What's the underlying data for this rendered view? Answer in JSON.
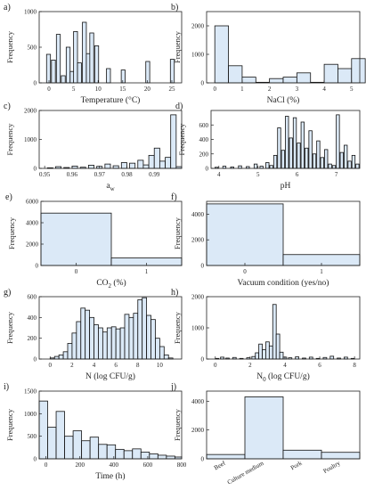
{
  "colors": {
    "bar_fill": "#dbe9f7",
    "bar_stroke": "#111111",
    "axis": "#222222"
  },
  "chart_data": [
    {
      "type": "bar",
      "panel_label": "a)",
      "xlabel": "Temperature (°C)",
      "ylabel": "Frequency",
      "xlim": [
        -2,
        27
      ],
      "ylim": [
        0,
        1000
      ],
      "xticks": [
        0,
        5,
        10,
        15,
        20,
        25
      ],
      "yticks": [
        0,
        500,
        1000
      ],
      "bars": [
        {
          "x": -0.5,
          "w": 0.8,
          "y": 400
        },
        {
          "x": 0.5,
          "w": 0.8,
          "y": 320
        },
        {
          "x": 1.5,
          "w": 0.8,
          "y": 680
        },
        {
          "x": 2.5,
          "w": 0.8,
          "y": 100
        },
        {
          "x": 3.5,
          "w": 0.8,
          "y": 500
        },
        {
          "x": 4.3,
          "w": 0.8,
          "y": 160
        },
        {
          "x": 5.0,
          "w": 0.8,
          "y": 720
        },
        {
          "x": 5.8,
          "w": 0.8,
          "y": 280
        },
        {
          "x": 6.8,
          "w": 0.8,
          "y": 850
        },
        {
          "x": 7.6,
          "w": 0.8,
          "y": 410
        },
        {
          "x": 8.3,
          "w": 0.8,
          "y": 700
        },
        {
          "x": 9.3,
          "w": 0.8,
          "y": 520
        },
        {
          "x": 11.7,
          "w": 0.8,
          "y": 200
        },
        {
          "x": 14.7,
          "w": 0.8,
          "y": 180
        },
        {
          "x": 19.7,
          "w": 0.8,
          "y": 300
        },
        {
          "x": 24.7,
          "w": 0.8,
          "y": 330
        }
      ]
    },
    {
      "type": "bar",
      "panel_label": "b)",
      "xlabel": "NaCl (%)",
      "ylabel": "Frequency",
      "xlim": [
        -0.3,
        5.3
      ],
      "ylim": [
        0,
        2500
      ],
      "xticks": [
        0,
        1,
        2,
        3,
        4,
        5
      ],
      "yticks": [
        0,
        1000,
        2000
      ],
      "bars": [
        {
          "x": 0.0,
          "w": 0.5,
          "y": 2000
        },
        {
          "x": 0.5,
          "w": 0.5,
          "y": 600
        },
        {
          "x": 1.0,
          "w": 0.5,
          "y": 200
        },
        {
          "x": 1.5,
          "w": 0.5,
          "y": 20
        },
        {
          "x": 2.0,
          "w": 0.5,
          "y": 150
        },
        {
          "x": 2.5,
          "w": 0.5,
          "y": 200
        },
        {
          "x": 3.0,
          "w": 0.5,
          "y": 350
        },
        {
          "x": 3.5,
          "w": 0.5,
          "y": 20
        },
        {
          "x": 4.0,
          "w": 0.5,
          "y": 650
        },
        {
          "x": 4.5,
          "w": 0.5,
          "y": 500
        },
        {
          "x": 5.0,
          "w": 0.5,
          "y": 850
        }
      ]
    },
    {
      "type": "bar",
      "panel_label": "c)",
      "xlabel": "a",
      "xlabel_sub": "w",
      "ylabel": "Frequency",
      "xlim": [
        0.948,
        1.0
      ],
      "ylim": [
        0,
        2000
      ],
      "xticks": [
        0.95,
        0.96,
        0.97,
        0.98,
        0.99
      ],
      "yticks": [
        0,
        1000,
        2000
      ],
      "bars": [
        {
          "x": 0.951,
          "w": 0.002,
          "y": 20
        },
        {
          "x": 0.954,
          "w": 0.002,
          "y": 60
        },
        {
          "x": 0.957,
          "w": 0.002,
          "y": 30
        },
        {
          "x": 0.96,
          "w": 0.002,
          "y": 80
        },
        {
          "x": 0.963,
          "w": 0.002,
          "y": 40
        },
        {
          "x": 0.966,
          "w": 0.002,
          "y": 110
        },
        {
          "x": 0.969,
          "w": 0.002,
          "y": 70
        },
        {
          "x": 0.972,
          "w": 0.002,
          "y": 150
        },
        {
          "x": 0.975,
          "w": 0.002,
          "y": 90
        },
        {
          "x": 0.978,
          "w": 0.002,
          "y": 200
        },
        {
          "x": 0.981,
          "w": 0.002,
          "y": 180
        },
        {
          "x": 0.984,
          "w": 0.002,
          "y": 280
        },
        {
          "x": 0.986,
          "w": 0.002,
          "y": 120
        },
        {
          "x": 0.988,
          "w": 0.002,
          "y": 450
        },
        {
          "x": 0.99,
          "w": 0.002,
          "y": 700
        },
        {
          "x": 0.992,
          "w": 0.002,
          "y": 250
        },
        {
          "x": 0.994,
          "w": 0.002,
          "y": 380
        },
        {
          "x": 0.996,
          "w": 0.002,
          "y": 1850
        },
        {
          "x": 0.998,
          "w": 0.002,
          "y": 60
        }
      ]
    },
    {
      "type": "bar",
      "panel_label": "d)",
      "xlabel": "pH",
      "ylabel": "Frequency",
      "xlim": [
        3.8,
        7.6
      ],
      "ylim": [
        0,
        800
      ],
      "xticks": [
        4,
        5,
        6,
        7
      ],
      "yticks": [
        0,
        200,
        400,
        600
      ],
      "bars": [
        {
          "x": 3.9,
          "w": 0.08,
          "y": 15
        },
        {
          "x": 4.1,
          "w": 0.08,
          "y": 30
        },
        {
          "x": 4.3,
          "w": 0.08,
          "y": 20
        },
        {
          "x": 4.5,
          "w": 0.08,
          "y": 35
        },
        {
          "x": 4.7,
          "w": 0.08,
          "y": 25
        },
        {
          "x": 4.9,
          "w": 0.08,
          "y": 60
        },
        {
          "x": 5.05,
          "w": 0.08,
          "y": 30
        },
        {
          "x": 5.2,
          "w": 0.08,
          "y": 80
        },
        {
          "x": 5.3,
          "w": 0.08,
          "y": 40
        },
        {
          "x": 5.4,
          "w": 0.08,
          "y": 180
        },
        {
          "x": 5.5,
          "w": 0.08,
          "y": 560
        },
        {
          "x": 5.6,
          "w": 0.08,
          "y": 250
        },
        {
          "x": 5.7,
          "w": 0.08,
          "y": 720
        },
        {
          "x": 5.8,
          "w": 0.08,
          "y": 420
        },
        {
          "x": 5.9,
          "w": 0.08,
          "y": 700
        },
        {
          "x": 6.0,
          "w": 0.08,
          "y": 350
        },
        {
          "x": 6.1,
          "w": 0.08,
          "y": 640
        },
        {
          "x": 6.2,
          "w": 0.08,
          "y": 280
        },
        {
          "x": 6.3,
          "w": 0.08,
          "y": 520
        },
        {
          "x": 6.4,
          "w": 0.08,
          "y": 200
        },
        {
          "x": 6.5,
          "w": 0.08,
          "y": 380
        },
        {
          "x": 6.6,
          "w": 0.08,
          "y": 150
        },
        {
          "x": 6.7,
          "w": 0.08,
          "y": 260
        },
        {
          "x": 6.8,
          "w": 0.08,
          "y": 60
        },
        {
          "x": 6.9,
          "w": 0.08,
          "y": 40
        },
        {
          "x": 7.0,
          "w": 0.08,
          "y": 740
        },
        {
          "x": 7.1,
          "w": 0.08,
          "y": 220
        },
        {
          "x": 7.2,
          "w": 0.08,
          "y": 320
        },
        {
          "x": 7.3,
          "w": 0.08,
          "y": 100
        },
        {
          "x": 7.4,
          "w": 0.08,
          "y": 180
        },
        {
          "x": 7.5,
          "w": 0.08,
          "y": 60
        }
      ]
    },
    {
      "type": "bar",
      "panel_label": "e)",
      "xlabel": "CO",
      "xlabel_sub": "2",
      "xlabel_suffix": " (%)",
      "ylabel": "Frequency",
      "xlim": [
        -0.5,
        1.5
      ],
      "ylim": [
        0,
        6000
      ],
      "xticks": [
        0,
        1
      ],
      "yticks": [
        0,
        2000,
        4000,
        6000
      ],
      "bars": [
        {
          "x": -0.5,
          "w": 1.0,
          "y": 4900
        },
        {
          "x": 0.5,
          "w": 1.0,
          "y": 700
        }
      ]
    },
    {
      "type": "bar",
      "panel_label": "f)",
      "xlabel": "Vacuum condition (yes/no)",
      "ylabel": "Frequency",
      "xlim": [
        -0.5,
        1.5
      ],
      "ylim": [
        0,
        5000
      ],
      "xticks": [
        0,
        1
      ],
      "yticks": [
        0,
        2000,
        4000
      ],
      "bars": [
        {
          "x": -0.5,
          "w": 1.0,
          "y": 4800
        },
        {
          "x": 0.5,
          "w": 1.0,
          "y": 850
        }
      ]
    },
    {
      "type": "bar",
      "panel_label": "g)",
      "xlabel": "N (log CFU/g)",
      "ylabel": "Frequency",
      "xlim": [
        -1,
        12
      ],
      "ylim": [
        0,
        600
      ],
      "xticks": [
        0,
        2,
        4,
        6,
        8,
        10
      ],
      "yticks": [
        0,
        200,
        400,
        600
      ],
      "bars": [
        {
          "x": 0.0,
          "w": 0.4,
          "y": 10
        },
        {
          "x": 0.4,
          "w": 0.4,
          "y": 25
        },
        {
          "x": 0.8,
          "w": 0.4,
          "y": 40
        },
        {
          "x": 1.2,
          "w": 0.4,
          "y": 70
        },
        {
          "x": 1.6,
          "w": 0.4,
          "y": 150
        },
        {
          "x": 2.0,
          "w": 0.4,
          "y": 250
        },
        {
          "x": 2.4,
          "w": 0.4,
          "y": 360
        },
        {
          "x": 2.8,
          "w": 0.4,
          "y": 490
        },
        {
          "x": 3.2,
          "w": 0.4,
          "y": 470
        },
        {
          "x": 3.6,
          "w": 0.4,
          "y": 400
        },
        {
          "x": 4.0,
          "w": 0.4,
          "y": 330
        },
        {
          "x": 4.4,
          "w": 0.4,
          "y": 300
        },
        {
          "x": 4.8,
          "w": 0.4,
          "y": 260
        },
        {
          "x": 5.2,
          "w": 0.4,
          "y": 300
        },
        {
          "x": 5.6,
          "w": 0.4,
          "y": 310
        },
        {
          "x": 6.0,
          "w": 0.4,
          "y": 290
        },
        {
          "x": 6.4,
          "w": 0.4,
          "y": 300
        },
        {
          "x": 6.8,
          "w": 0.4,
          "y": 430
        },
        {
          "x": 7.2,
          "w": 0.4,
          "y": 400
        },
        {
          "x": 7.6,
          "w": 0.4,
          "y": 440
        },
        {
          "x": 8.0,
          "w": 0.4,
          "y": 570
        },
        {
          "x": 8.4,
          "w": 0.4,
          "y": 590
        },
        {
          "x": 8.8,
          "w": 0.4,
          "y": 420
        },
        {
          "x": 9.2,
          "w": 0.4,
          "y": 380
        },
        {
          "x": 9.6,
          "w": 0.4,
          "y": 200
        },
        {
          "x": 10.0,
          "w": 0.4,
          "y": 120
        },
        {
          "x": 10.4,
          "w": 0.4,
          "y": 40
        },
        {
          "x": 10.8,
          "w": 0.4,
          "y": 10
        }
      ]
    },
    {
      "type": "bar",
      "panel_label": "h)",
      "xlabel": "N",
      "xlabel_sub": "0",
      "xlabel_suffix": " (log CFU/g)",
      "ylabel": "Frequency",
      "xlim": [
        -0.5,
        8.3
      ],
      "ylim": [
        0,
        2000
      ],
      "xticks": [
        0,
        2,
        4,
        6,
        8
      ],
      "yticks": [
        0,
        1000,
        2000
      ],
      "bars": [
        {
          "x": 0.0,
          "w": 0.2,
          "y": 20
        },
        {
          "x": 0.3,
          "w": 0.2,
          "y": 60
        },
        {
          "x": 0.6,
          "w": 0.2,
          "y": 30
        },
        {
          "x": 1.0,
          "w": 0.2,
          "y": 50
        },
        {
          "x": 1.4,
          "w": 0.2,
          "y": 20
        },
        {
          "x": 1.8,
          "w": 0.2,
          "y": 40
        },
        {
          "x": 2.1,
          "w": 0.2,
          "y": 80
        },
        {
          "x": 2.3,
          "w": 0.2,
          "y": 200
        },
        {
          "x": 2.5,
          "w": 0.2,
          "y": 480
        },
        {
          "x": 2.7,
          "w": 0.2,
          "y": 300
        },
        {
          "x": 2.9,
          "w": 0.2,
          "y": 550
        },
        {
          "x": 3.1,
          "w": 0.2,
          "y": 420
        },
        {
          "x": 3.3,
          "w": 0.2,
          "y": 1750
        },
        {
          "x": 3.5,
          "w": 0.2,
          "y": 800
        },
        {
          "x": 3.7,
          "w": 0.2,
          "y": 220
        },
        {
          "x": 3.9,
          "w": 0.2,
          "y": 60
        },
        {
          "x": 4.2,
          "w": 0.2,
          "y": 40
        },
        {
          "x": 4.6,
          "w": 0.2,
          "y": 70
        },
        {
          "x": 5.0,
          "w": 0.2,
          "y": 30
        },
        {
          "x": 5.4,
          "w": 0.2,
          "y": 60
        },
        {
          "x": 5.8,
          "w": 0.2,
          "y": 20
        },
        {
          "x": 6.2,
          "w": 0.2,
          "y": 50
        },
        {
          "x": 6.6,
          "w": 0.2,
          "y": 90
        },
        {
          "x": 7.0,
          "w": 0.2,
          "y": 30
        },
        {
          "x": 7.4,
          "w": 0.2,
          "y": 60
        },
        {
          "x": 7.8,
          "w": 0.2,
          "y": 20
        }
      ]
    },
    {
      "type": "bar",
      "panel_label": "i)",
      "xlabel": "Time (h)",
      "ylabel": "Frequency",
      "xlim": [
        -40,
        800
      ],
      "ylim": [
        0,
        1500
      ],
      "xticks": [
        0,
        200,
        400,
        600,
        800
      ],
      "yticks": [
        0,
        500,
        1000,
        1500
      ],
      "bars": [
        {
          "x": -40,
          "w": 50,
          "y": 1280
        },
        {
          "x": 10,
          "w": 50,
          "y": 700
        },
        {
          "x": 60,
          "w": 50,
          "y": 1050
        },
        {
          "x": 110,
          "w": 50,
          "y": 500
        },
        {
          "x": 160,
          "w": 50,
          "y": 620
        },
        {
          "x": 210,
          "w": 50,
          "y": 400
        },
        {
          "x": 260,
          "w": 50,
          "y": 480
        },
        {
          "x": 310,
          "w": 50,
          "y": 320
        },
        {
          "x": 360,
          "w": 50,
          "y": 310
        },
        {
          "x": 410,
          "w": 50,
          "y": 210
        },
        {
          "x": 460,
          "w": 50,
          "y": 180
        },
        {
          "x": 510,
          "w": 50,
          "y": 220
        },
        {
          "x": 560,
          "w": 50,
          "y": 150
        },
        {
          "x": 610,
          "w": 50,
          "y": 110
        },
        {
          "x": 660,
          "w": 50,
          "y": 80
        },
        {
          "x": 710,
          "w": 50,
          "y": 60
        },
        {
          "x": 760,
          "w": 40,
          "y": 40
        }
      ]
    },
    {
      "type": "bar",
      "panel_label": "j)",
      "xlabel": "",
      "ylabel": "Frequency",
      "xlim": [
        0,
        4
      ],
      "ylim": [
        0,
        4700
      ],
      "yticks": [
        0,
        2000,
        4000
      ],
      "categories": [
        "Beef",
        "Culture medium",
        "Pork",
        "Poultry"
      ],
      "bars": [
        {
          "x": 0.0,
          "w": 1.0,
          "y": 300
        },
        {
          "x": 1.0,
          "w": 1.0,
          "y": 4300
        },
        {
          "x": 2.0,
          "w": 1.0,
          "y": 600
        },
        {
          "x": 3.0,
          "w": 1.0,
          "y": 450
        }
      ]
    }
  ]
}
